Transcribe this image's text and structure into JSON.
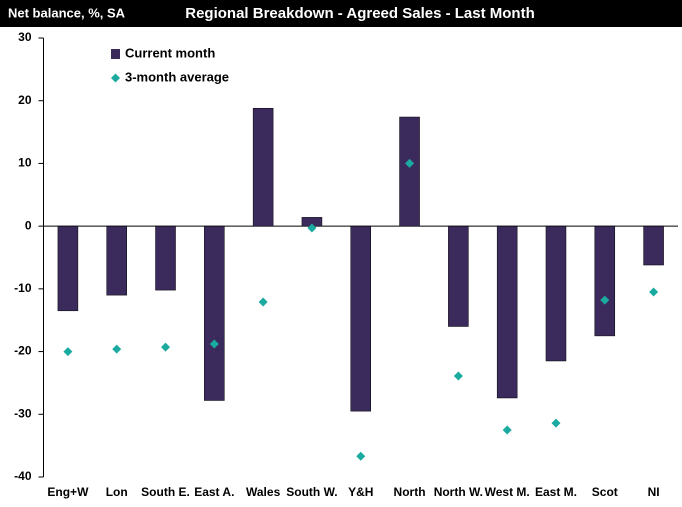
{
  "chart_data": {
    "type": "bar",
    "subtitle": "Net balance, %, SA",
    "title": "Regional Breakdown - Agreed Sales - Last Month",
    "categories": [
      "Eng+W",
      "Lon",
      "South E.",
      "East A.",
      "Wales",
      "South W.",
      "Y&H",
      "North",
      "North W.",
      "West M.",
      "East M.",
      "Scot",
      "NI"
    ],
    "series": [
      {
        "name": "Current month",
        "color": "#3b2a5c",
        "kind": "bar",
        "values": [
          -13.5,
          -11,
          -10.2,
          -27.8,
          18.8,
          1.4,
          -29.5,
          17.4,
          -16,
          -27.4,
          -21.5,
          -17.5,
          -6.2
        ]
      },
      {
        "name": "3-month average",
        "color": "#1aaaa0",
        "kind": "diamond",
        "values": [
          -20,
          -19.6,
          -19.3,
          -18.8,
          -12.1,
          -0.3,
          -36.7,
          10,
          -23.9,
          -32.5,
          -31.4,
          -11.8,
          -10.5
        ]
      }
    ],
    "ylim": [
      -40,
      30
    ],
    "yticks": [
      -40,
      -30,
      -20,
      -10,
      0,
      10,
      20,
      30
    ],
    "legend": "upper-left"
  }
}
